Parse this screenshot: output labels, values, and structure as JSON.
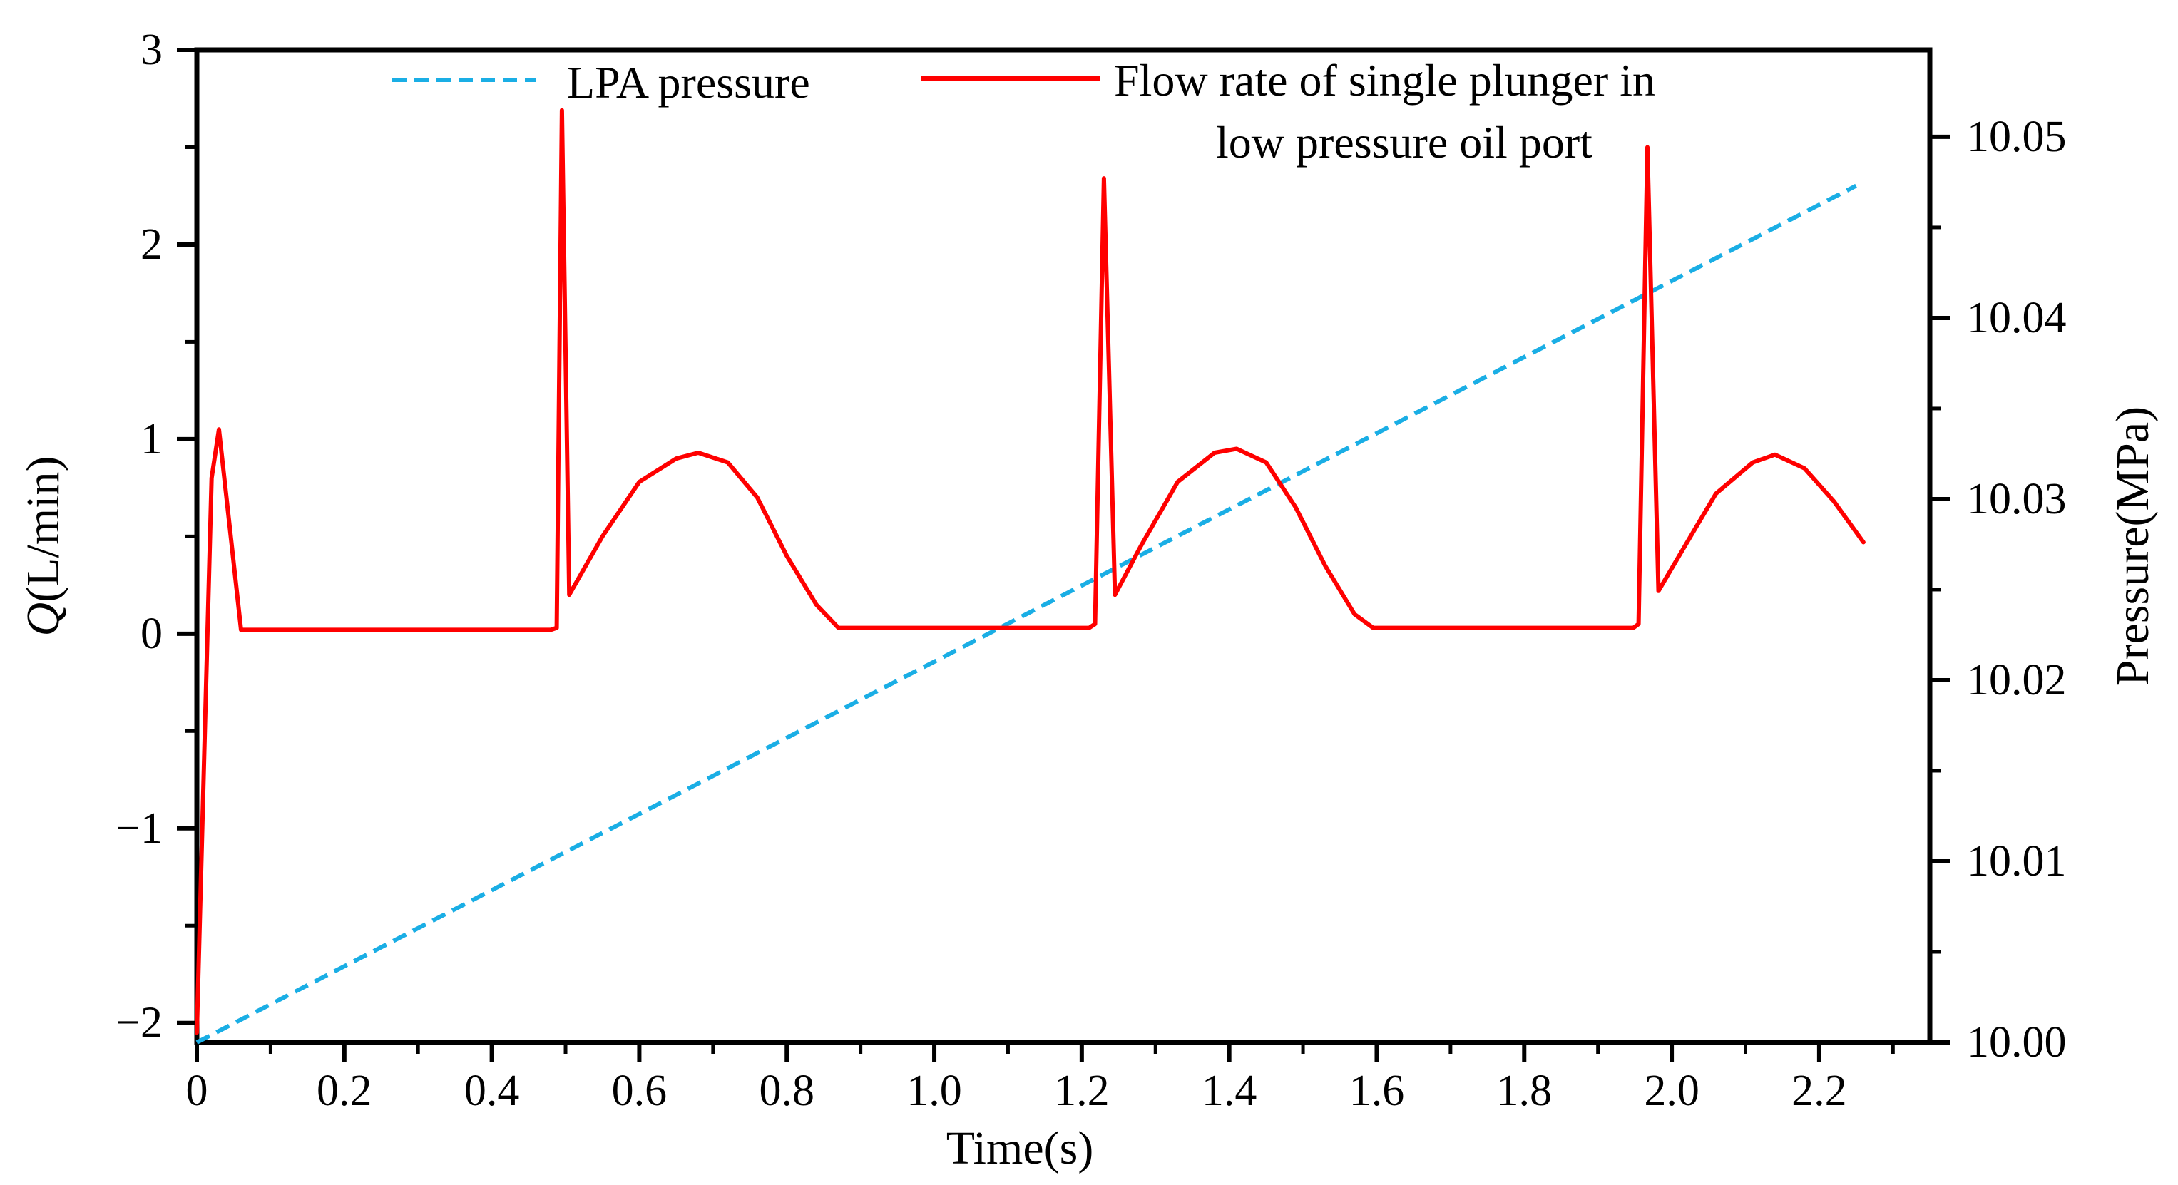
{
  "chart_data": {
    "type": "line",
    "title": "",
    "xlabel": "Time(s)",
    "ylabel_prefix": "Q",
    "ylabel_suffix": "(L/min)",
    "y2label": "Pressure(MPa)",
    "xlim": [
      0,
      2.35
    ],
    "ylim": [
      -2.1,
      3.0
    ],
    "y2lim": [
      10.0,
      10.0548
    ],
    "x_ticks": [
      0,
      0.2,
      0.4,
      0.6,
      0.8,
      1.0,
      1.2,
      1.4,
      1.6,
      1.8,
      2.0,
      2.2
    ],
    "x_tick_labels": [
      "0",
      "0.2",
      "0.4",
      "0.6",
      "0.8",
      "1.0",
      "1.2",
      "1.4",
      "1.6",
      "1.8",
      "2.0",
      "2.2"
    ],
    "y_ticks": [
      -2,
      -1,
      0,
      1,
      2,
      3
    ],
    "y_tick_labels": [
      "−2",
      "−1",
      "0",
      "1",
      "2",
      "3"
    ],
    "y2_ticks": [
      10.0,
      10.01,
      10.02,
      10.03,
      10.04,
      10.05
    ],
    "y2_tick_labels": [
      "10.00",
      "10.01",
      "10.02",
      "10.03",
      "10.04",
      "10.05"
    ],
    "grid": false,
    "legend_position": "top",
    "series": [
      {
        "name": "LPA pressure",
        "axis": "right",
        "color": "#1aaee5",
        "dash": true,
        "x": [
          0.0,
          2.25
        ],
        "y": [
          10.0,
          10.0473
        ]
      },
      {
        "name": "Flow rate of single plunger in low pressure oil port",
        "name_line1": "Flow rate of single plunger in",
        "name_line2": "low pressure oil port",
        "axis": "left",
        "color": "#ff0000",
        "dash": false,
        "x": [
          0.0,
          0.02,
          0.03,
          0.06,
          0.1,
          0.3,
          0.48,
          0.488,
          0.495,
          0.505,
          0.52,
          0.55,
          0.6,
          0.65,
          0.68,
          0.72,
          0.76,
          0.8,
          0.84,
          0.87,
          1.0,
          1.2,
          1.21,
          1.218,
          1.23,
          1.245,
          1.28,
          1.33,
          1.38,
          1.41,
          1.45,
          1.49,
          1.53,
          1.57,
          1.595,
          1.75,
          1.94,
          1.948,
          1.955,
          1.967,
          1.982,
          2.01,
          2.06,
          2.11,
          2.14,
          2.18,
          2.22,
          2.26
        ],
        "y": [
          -2.05,
          0.8,
          1.05,
          0.02,
          0.02,
          0.02,
          0.02,
          0.03,
          2.69,
          0.2,
          0.3,
          0.5,
          0.78,
          0.9,
          0.93,
          0.88,
          0.7,
          0.4,
          0.15,
          0.03,
          0.03,
          0.03,
          0.03,
          0.05,
          2.34,
          0.2,
          0.45,
          0.78,
          0.93,
          0.95,
          0.88,
          0.65,
          0.35,
          0.1,
          0.03,
          0.03,
          0.03,
          0.03,
          0.05,
          2.5,
          0.22,
          0.4,
          0.72,
          0.88,
          0.92,
          0.85,
          0.68,
          0.47
        ]
      }
    ]
  }
}
